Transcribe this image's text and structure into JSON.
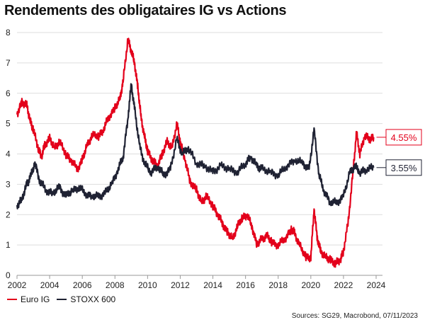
{
  "title": "Rendements des obligataires IG vs Actions",
  "source": "Sources: SG29, Macrobond, 07/11/2023",
  "colors": {
    "euro_ig": "#e3001b",
    "stoxx": "#1f2233",
    "grid": "#dddddd"
  },
  "legend": [
    {
      "label": "Euro IG",
      "color": "#e3001b"
    },
    {
      "label": "STOXX 600",
      "color": "#1f2233"
    }
  ],
  "chart_data": {
    "type": "line",
    "title": "Rendements des obligataires IG vs Actions",
    "xlabel": "",
    "ylabel": "",
    "xlim": [
      2002,
      2024
    ],
    "ylim": [
      0,
      8
    ],
    "x_ticks": [
      2002,
      2004,
      2006,
      2008,
      2010,
      2012,
      2014,
      2016,
      2018,
      2020,
      2022,
      2024
    ],
    "y_ticks": [
      0,
      1,
      2,
      3,
      4,
      5,
      6,
      7,
      8
    ],
    "grid": true,
    "legend_position": "bottom-left",
    "series": [
      {
        "name": "Euro IG",
        "color": "#e3001b",
        "end_label": "4.55%",
        "points": [
          [
            2002.0,
            5.3
          ],
          [
            2002.3,
            5.7
          ],
          [
            2002.6,
            5.6
          ],
          [
            2002.8,
            5.1
          ],
          [
            2003.0,
            4.8
          ],
          [
            2003.3,
            4.2
          ],
          [
            2003.5,
            3.9
          ],
          [
            2003.7,
            4.3
          ],
          [
            2004.0,
            4.5
          ],
          [
            2004.3,
            4.2
          ],
          [
            2004.6,
            4.4
          ],
          [
            2005.0,
            4.0
          ],
          [
            2005.3,
            3.8
          ],
          [
            2005.7,
            3.5
          ],
          [
            2006.0,
            3.8
          ],
          [
            2006.3,
            4.3
          ],
          [
            2006.6,
            4.6
          ],
          [
            2007.0,
            4.6
          ],
          [
            2007.3,
            4.8
          ],
          [
            2007.6,
            5.2
          ],
          [
            2008.0,
            5.5
          ],
          [
            2008.3,
            5.8
          ],
          [
            2008.5,
            6.4
          ],
          [
            2008.8,
            7.8
          ],
          [
            2009.0,
            7.4
          ],
          [
            2009.2,
            7.0
          ],
          [
            2009.4,
            6.2
          ],
          [
            2009.6,
            5.2
          ],
          [
            2009.8,
            4.6
          ],
          [
            2010.0,
            4.1
          ],
          [
            2010.3,
            3.8
          ],
          [
            2010.6,
            3.6
          ],
          [
            2010.9,
            4.0
          ],
          [
            2011.2,
            4.4
          ],
          [
            2011.5,
            4.2
          ],
          [
            2011.8,
            5.0
          ],
          [
            2012.0,
            4.4
          ],
          [
            2012.3,
            3.8
          ],
          [
            2012.6,
            3.1
          ],
          [
            2013.0,
            2.8
          ],
          [
            2013.3,
            2.4
          ],
          [
            2013.6,
            2.6
          ],
          [
            2014.0,
            2.3
          ],
          [
            2014.3,
            2.0
          ],
          [
            2014.6,
            1.7
          ],
          [
            2014.9,
            1.4
          ],
          [
            2015.2,
            1.2
          ],
          [
            2015.5,
            1.6
          ],
          [
            2015.8,
            1.9
          ],
          [
            2016.1,
            2.0
          ],
          [
            2016.4,
            1.6
          ],
          [
            2016.7,
            1.0
          ],
          [
            2017.0,
            1.2
          ],
          [
            2017.3,
            1.3
          ],
          [
            2017.6,
            1.1
          ],
          [
            2018.0,
            1.0
          ],
          [
            2018.4,
            1.2
          ],
          [
            2018.8,
            1.5
          ],
          [
            2019.0,
            1.4
          ],
          [
            2019.3,
            1.0
          ],
          [
            2019.7,
            0.6
          ],
          [
            2020.0,
            0.6
          ],
          [
            2020.2,
            2.2
          ],
          [
            2020.4,
            1.2
          ],
          [
            2020.6,
            0.8
          ],
          [
            2020.9,
            0.6
          ],
          [
            2021.2,
            0.5
          ],
          [
            2021.5,
            0.4
          ],
          [
            2021.8,
            0.5
          ],
          [
            2022.0,
            0.8
          ],
          [
            2022.3,
            1.8
          ],
          [
            2022.6,
            3.5
          ],
          [
            2022.8,
            4.7
          ],
          [
            2023.0,
            4.0
          ],
          [
            2023.3,
            4.6
          ],
          [
            2023.6,
            4.5
          ],
          [
            2023.85,
            4.55
          ]
        ]
      },
      {
        "name": "STOXX 600",
        "color": "#1f2233",
        "end_label": "3.55%",
        "points": [
          [
            2002.0,
            2.3
          ],
          [
            2002.3,
            2.5
          ],
          [
            2002.6,
            3.0
          ],
          [
            2002.8,
            3.2
          ],
          [
            2003.1,
            3.7
          ],
          [
            2003.4,
            3.1
          ],
          [
            2003.8,
            2.8
          ],
          [
            2004.2,
            2.7
          ],
          [
            2004.6,
            2.9
          ],
          [
            2005.0,
            2.6
          ],
          [
            2005.4,
            2.8
          ],
          [
            2005.8,
            2.9
          ],
          [
            2006.2,
            2.7
          ],
          [
            2006.6,
            2.6
          ],
          [
            2007.0,
            2.6
          ],
          [
            2007.4,
            2.7
          ],
          [
            2007.8,
            3.0
          ],
          [
            2008.2,
            3.5
          ],
          [
            2008.5,
            3.9
          ],
          [
            2008.8,
            5.2
          ],
          [
            2009.0,
            6.3
          ],
          [
            2009.2,
            5.5
          ],
          [
            2009.5,
            4.3
          ],
          [
            2009.8,
            3.7
          ],
          [
            2010.2,
            3.4
          ],
          [
            2010.6,
            3.6
          ],
          [
            2011.0,
            3.3
          ],
          [
            2011.4,
            3.5
          ],
          [
            2011.8,
            4.5
          ],
          [
            2012.1,
            4.0
          ],
          [
            2012.5,
            4.2
          ],
          [
            2013.0,
            3.7
          ],
          [
            2013.5,
            3.6
          ],
          [
            2014.0,
            3.4
          ],
          [
            2014.5,
            3.6
          ],
          [
            2015.0,
            3.5
          ],
          [
            2015.5,
            3.4
          ],
          [
            2016.0,
            3.7
          ],
          [
            2016.3,
            3.9
          ],
          [
            2016.7,
            3.6
          ],
          [
            2017.0,
            3.5
          ],
          [
            2017.5,
            3.4
          ],
          [
            2018.0,
            3.3
          ],
          [
            2018.5,
            3.6
          ],
          [
            2019.0,
            3.8
          ],
          [
            2019.5,
            3.7
          ],
          [
            2019.9,
            3.5
          ],
          [
            2020.2,
            4.8
          ],
          [
            2020.5,
            3.3
          ],
          [
            2020.8,
            2.8
          ],
          [
            2021.2,
            2.4
          ],
          [
            2021.6,
            2.4
          ],
          [
            2022.0,
            2.6
          ],
          [
            2022.4,
            3.4
          ],
          [
            2022.7,
            3.6
          ],
          [
            2023.0,
            3.4
          ],
          [
            2023.4,
            3.5
          ],
          [
            2023.85,
            3.55
          ]
        ]
      }
    ]
  }
}
